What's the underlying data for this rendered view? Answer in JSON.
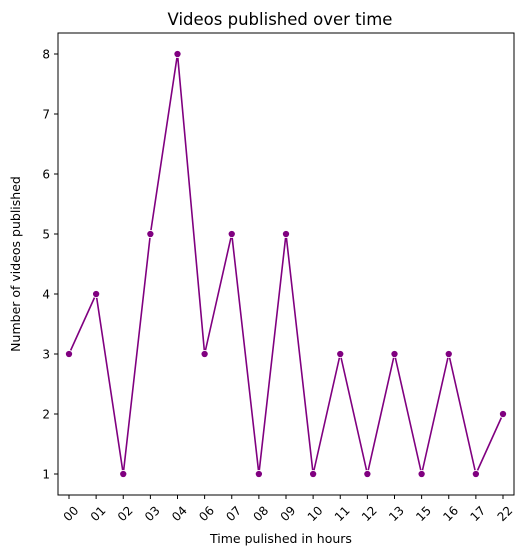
{
  "chart_data": {
    "type": "line",
    "title": "Videos published over time",
    "xlabel": "Time pulished in hours",
    "ylabel": "Number of videos published",
    "categories": [
      "00",
      "01",
      "02",
      "03",
      "04",
      "06",
      "07",
      "08",
      "09",
      "10",
      "11",
      "12",
      "13",
      "15",
      "16",
      "17",
      "22"
    ],
    "series": [
      {
        "values": [
          3,
          4,
          1,
          5,
          8,
          3,
          5,
          1,
          5,
          1,
          3,
          1,
          3,
          1,
          3,
          1,
          2
        ],
        "color": "#800080",
        "marker": "circle"
      }
    ],
    "yticks": [
      1,
      2,
      3,
      4,
      5,
      6,
      7,
      8
    ],
    "ylim": [
      0.65,
      8.35
    ],
    "x_tick_rotation": 45,
    "grid": false,
    "legend": "none"
  }
}
